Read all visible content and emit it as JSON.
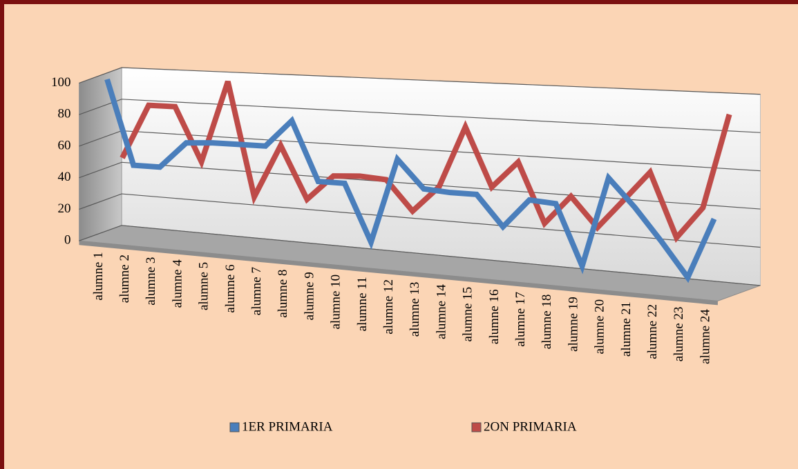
{
  "chart_data": {
    "type": "line3d",
    "categories": [
      "alumne 1",
      "alumne 2",
      "alumne 3",
      "alumne 4",
      "alumne 5",
      "alumne 6",
      "alumne 7",
      "alumne 8",
      "alumne 9",
      "alumne 10",
      "alumne 11",
      "alumne 12",
      "alumne 13",
      "alumne 14",
      "alumne 15",
      "alumne 16",
      "alumne 17",
      "alumne 18",
      "alumne 19",
      "alumne 20",
      "alumne 21",
      "alumne 22",
      "alumne 23",
      "alumne 24"
    ],
    "series": [
      {
        "name": "1ER PRIMARIA",
        "color": "#4a7ebb",
        "values": [
          100,
          47,
          47,
          63,
          64,
          64,
          64,
          80,
          45,
          45,
          12,
          61,
          45,
          44,
          44,
          27,
          43,
          42,
          9,
          58,
          43,
          26,
          8,
          40
        ]
      },
      {
        "name": "2ON PRIMARIA",
        "color": "#be4b48",
        "values": [
          47,
          81,
          81,
          48,
          98,
          29,
          61,
          30,
          45,
          46,
          45,
          28,
          43,
          78,
          45,
          60,
          27,
          43,
          27,
          43,
          59,
          25,
          42,
          92
        ]
      }
    ],
    "ylim": [
      0,
      100
    ],
    "yticks": [
      0,
      20,
      40,
      60,
      80,
      100
    ],
    "grid": true,
    "legend": "bottom"
  }
}
